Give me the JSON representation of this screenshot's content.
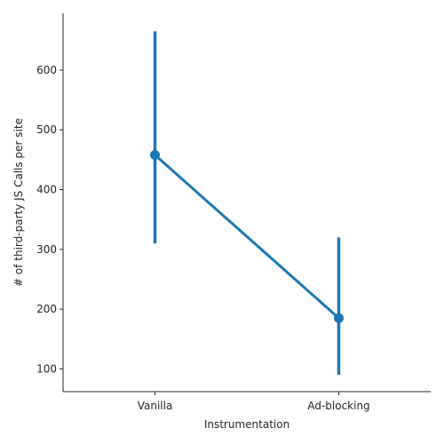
{
  "chart_data": {
    "type": "line",
    "title": "",
    "xlabel": "Instrumentation",
    "ylabel": "# of third-party JS Calls per site",
    "categories": [
      "Vanilla",
      "Ad-blocking"
    ],
    "series": [
      {
        "values": [
          458,
          185
        ],
        "ci_low": [
          310,
          90
        ],
        "ci_high": [
          665,
          320
        ]
      }
    ],
    "yticks": [
      100,
      200,
      300,
      400,
      500,
      600
    ],
    "ytick_labels": [
      "100",
      "200",
      "300",
      "400",
      "500",
      "600"
    ],
    "ylim": [
      62,
      695
    ],
    "grid": false,
    "legend": "none",
    "color": "#1f77b4"
  }
}
